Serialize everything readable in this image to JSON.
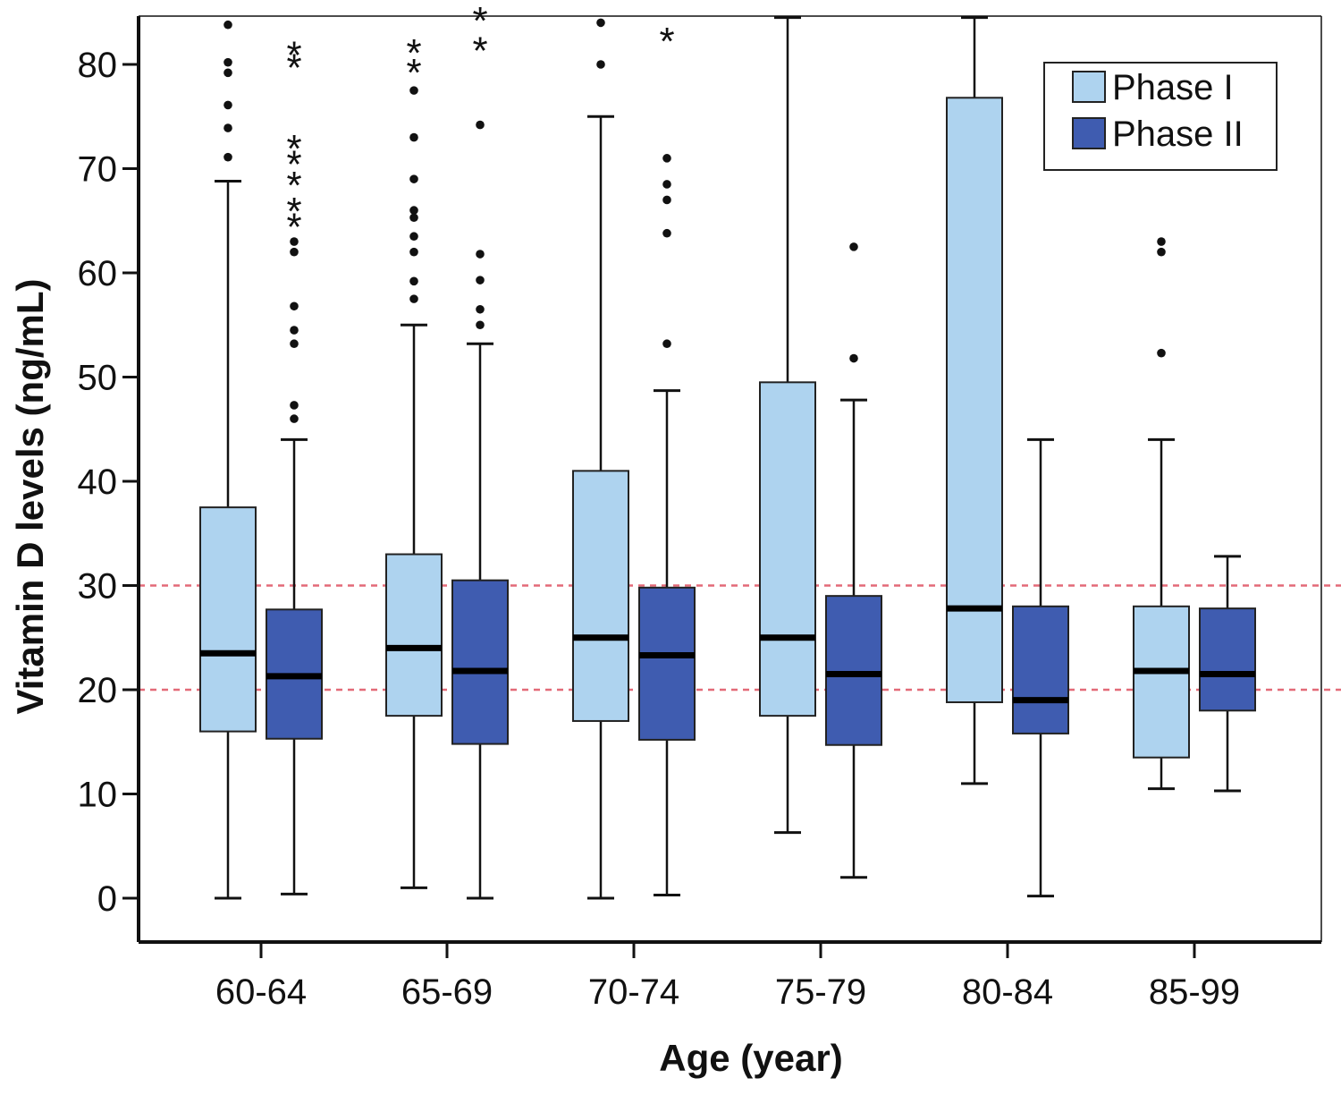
{
  "chart_data": {
    "type": "boxplot",
    "xlabel": "Age (year)",
    "ylabel": "Vitamin D levels (ng/mL)",
    "ylim": [
      -4,
      84.5
    ],
    "yticks": [
      0,
      10,
      20,
      30,
      40,
      50,
      60,
      70,
      80
    ],
    "categories": [
      "60-64",
      "65-69",
      "70-74",
      "75-79",
      "80-84",
      "85-99"
    ],
    "reference_lines": [
      20,
      30
    ],
    "legend": {
      "position": "top-right"
    },
    "colors": {
      "phase1": "#aed3ef",
      "phase2": "#3f5cb0",
      "reference": "#e36a78",
      "outline": "#111111"
    },
    "series": [
      {
        "name": "Phase I",
        "boxes": [
          {
            "min": 0,
            "q1": 16,
            "median": 23.5,
            "q3": 37.5,
            "max": 68.8,
            "outliers": [
              83.8,
              80.2,
              79.2,
              76.1,
              73.9,
              71.1
            ],
            "extremes": []
          },
          {
            "min": 1,
            "q1": 17.5,
            "median": 24,
            "q3": 33,
            "max": 55,
            "outliers": [
              77.5,
              73,
              69,
              66,
              65.3,
              63.5,
              62,
              59.2,
              57.5
            ],
            "extremes": [
              81.2,
              79.3
            ]
          },
          {
            "min": 0,
            "q1": 17,
            "median": 25,
            "q3": 41,
            "max": 75,
            "outliers": [
              84,
              80
            ],
            "extremes": []
          },
          {
            "min": 6.3,
            "q1": 17.5,
            "median": 25,
            "q3": 49.5,
            "max": 84.5,
            "outliers": [],
            "extremes": []
          },
          {
            "min": 11,
            "q1": 18.8,
            "median": 27.8,
            "q3": 76.8,
            "max": 84.5,
            "outliers": [],
            "extremes": []
          },
          {
            "min": 10.5,
            "q1": 13.5,
            "median": 21.8,
            "q3": 28,
            "max": 44,
            "outliers": [
              63,
              62,
              52.3
            ],
            "extremes": []
          }
        ]
      },
      {
        "name": "Phase II",
        "boxes": [
          {
            "min": 0.4,
            "q1": 15.3,
            "median": 21.3,
            "q3": 27.7,
            "max": 44,
            "outliers": [
              63,
              62,
              56.8,
              54.5,
              53.2,
              47.3,
              46
            ],
            "extremes": [
              81,
              79.8,
              72,
              70.5,
              68.5,
              66,
              64.5
            ]
          },
          {
            "min": 0,
            "q1": 14.8,
            "median": 21.8,
            "q3": 30.5,
            "max": 53.2,
            "outliers": [
              74.2,
              61.8,
              59.3,
              56.5,
              55
            ],
            "extremes": [
              84.3,
              81.4
            ]
          },
          {
            "min": 0.3,
            "q1": 15.2,
            "median": 23.3,
            "q3": 29.8,
            "max": 48.7,
            "outliers": [
              71,
              68.5,
              67,
              63.8,
              53.2
            ],
            "extremes": [
              82.3
            ]
          },
          {
            "min": 2,
            "q1": 14.7,
            "median": 21.5,
            "q3": 29,
            "max": 47.8,
            "outliers": [
              62.5,
              51.8
            ],
            "extremes": []
          },
          {
            "min": 0.2,
            "q1": 15.8,
            "median": 19,
            "q3": 28,
            "max": 44,
            "outliers": [],
            "extremes": []
          },
          {
            "min": 10.3,
            "q1": 18,
            "median": 21.5,
            "q3": 27.8,
            "max": 32.8,
            "outliers": [],
            "extremes": []
          }
        ]
      }
    ]
  }
}
